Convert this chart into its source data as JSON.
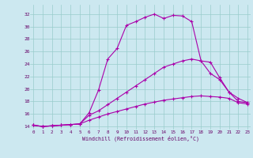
{
  "xlabel": "Windchill (Refroidissement éolien,°C)",
  "bg_color": "#cce8f0",
  "line_color": "#aa00aa",
  "grid_color": "#99cccc",
  "line1_x": [
    0,
    1,
    2,
    3,
    4,
    5,
    6,
    7,
    8,
    9,
    10,
    11,
    12,
    13,
    14,
    15,
    16,
    17,
    18,
    19,
    20,
    21,
    22,
    23
  ],
  "line1_y": [
    14.2,
    14.0,
    14.1,
    14.2,
    14.3,
    14.4,
    16.2,
    19.8,
    24.8,
    26.5,
    30.2,
    30.8,
    31.5,
    32.0,
    31.3,
    31.8,
    31.7,
    30.8,
    24.5,
    24.3,
    21.8,
    19.5,
    18.0,
    17.8
  ],
  "line2_x": [
    0,
    1,
    2,
    3,
    4,
    5,
    6,
    7,
    8,
    9,
    10,
    11,
    12,
    13,
    14,
    15,
    16,
    17,
    18,
    19,
    20,
    21,
    22,
    23
  ],
  "line2_y": [
    14.2,
    14.0,
    14.1,
    14.2,
    14.3,
    14.4,
    15.8,
    16.5,
    17.5,
    18.5,
    19.5,
    20.5,
    21.5,
    22.5,
    23.5,
    24.0,
    24.5,
    24.8,
    24.5,
    22.5,
    21.5,
    19.5,
    18.5,
    17.8
  ],
  "line3_x": [
    0,
    1,
    2,
    3,
    4,
    5,
    6,
    7,
    8,
    9,
    10,
    11,
    12,
    13,
    14,
    15,
    16,
    17,
    18,
    19,
    20,
    21,
    22,
    23
  ],
  "line3_y": [
    14.2,
    14.0,
    14.1,
    14.2,
    14.3,
    14.4,
    15.0,
    15.5,
    16.0,
    16.4,
    16.8,
    17.2,
    17.6,
    17.9,
    18.2,
    18.4,
    18.6,
    18.8,
    18.9,
    18.8,
    18.7,
    18.5,
    17.8,
    17.6
  ],
  "ylim": [
    13.5,
    33.5
  ],
  "xlim": [
    -0.3,
    23.3
  ],
  "yticks": [
    14,
    16,
    18,
    20,
    22,
    24,
    26,
    28,
    30,
    32
  ],
  "xticks": [
    0,
    1,
    2,
    3,
    4,
    5,
    6,
    7,
    8,
    9,
    10,
    11,
    12,
    13,
    14,
    15,
    16,
    17,
    18,
    19,
    20,
    21,
    22,
    23
  ]
}
